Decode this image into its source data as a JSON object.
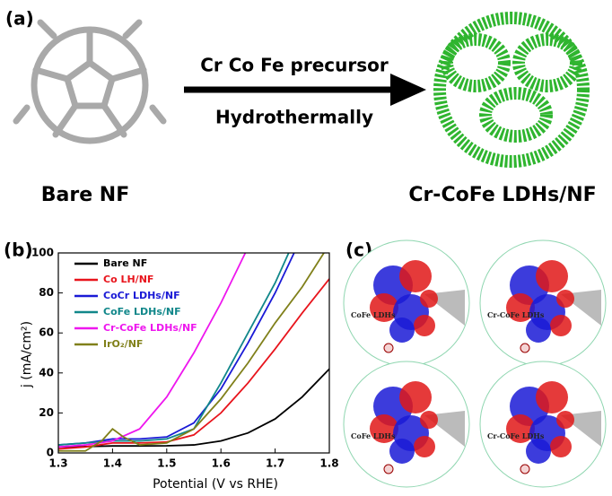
{
  "panel_a": {
    "label": "(a)",
    "arrow_top": "Cr Co Fe precursor",
    "arrow_bottom": "Hydrothermally",
    "left_label": "Bare NF",
    "right_label": "Cr-CoFe LDHs/NF"
  },
  "chart_data": {
    "type": "line",
    "panel_label": "(b)",
    "xlabel": "Potential (V vs RHE)",
    "ylabel": "j (mA/cm²)",
    "xlim": [
      1.3,
      1.8
    ],
    "xticks": [
      1.3,
      1.4,
      1.5,
      1.6,
      1.7,
      1.8
    ],
    "ylim": [
      0,
      100
    ],
    "yticks": [
      0,
      20,
      40,
      60,
      80,
      100
    ],
    "legend": "upper-left",
    "series": [
      {
        "name": "Bare NF",
        "color": "#000000",
        "x": [
          1.3,
          1.35,
          1.4,
          1.45,
          1.5,
          1.55,
          1.6,
          1.65,
          1.7,
          1.75,
          1.8
        ],
        "values": [
          3,
          3.2,
          3.5,
          3.5,
          3.6,
          4,
          6,
          10,
          17,
          28,
          42
        ]
      },
      {
        "name": "Co LH/NF",
        "color": "#e8141c",
        "x": [
          1.3,
          1.35,
          1.4,
          1.45,
          1.5,
          1.55,
          1.6,
          1.65,
          1.7,
          1.75,
          1.8
        ],
        "values": [
          2,
          3,
          5,
          5,
          5.5,
          9,
          20,
          35,
          52,
          70,
          87
        ]
      },
      {
        "name": "CoCr LDHs/NF",
        "color": "#1a1ad6",
        "x": [
          1.3,
          1.35,
          1.4,
          1.45,
          1.5,
          1.55,
          1.6,
          1.65,
          1.7,
          1.735
        ],
        "values": [
          4,
          5,
          7,
          7,
          8,
          15,
          32,
          55,
          80,
          100
        ]
      },
      {
        "name": "CoFe LDHs/NF",
        "color": "#11878a",
        "x": [
          1.3,
          1.35,
          1.4,
          1.45,
          1.5,
          1.55,
          1.6,
          1.65,
          1.7,
          1.725
        ],
        "values": [
          4,
          5,
          6,
          6,
          7,
          12,
          35,
          60,
          85,
          100
        ]
      },
      {
        "name": "Cr-CoFe LDHs/NF",
        "color": "#ee16ee",
        "x": [
          1.3,
          1.35,
          1.4,
          1.45,
          1.5,
          1.55,
          1.6,
          1.645
        ],
        "values": [
          3,
          4,
          6,
          12,
          28,
          50,
          75,
          100
        ]
      },
      {
        "name": "IrO₂/NF",
        "color": "#80801a",
        "x": [
          1.3,
          1.35,
          1.38,
          1.4,
          1.42,
          1.45,
          1.5,
          1.55,
          1.6,
          1.65,
          1.7,
          1.75,
          1.79
        ],
        "values": [
          1,
          1,
          6,
          12,
          8,
          4,
          5,
          12,
          27,
          45,
          65,
          83,
          100
        ]
      }
    ]
  },
  "panel_c": {
    "label": "(c)",
    "images": [
      {
        "label": "CoFe LDHs"
      },
      {
        "label": "Cr-CoFe LDHs"
      },
      {
        "label": "CoFe LDHs"
      },
      {
        "label": "Cr-CoFe LDHs"
      }
    ]
  }
}
